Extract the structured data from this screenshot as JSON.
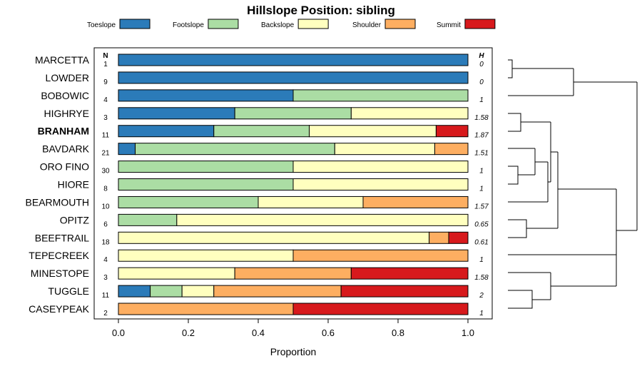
{
  "chart_data": {
    "type": "bar",
    "stacked": true,
    "orientation": "horizontal",
    "title": "Hillslope Position: sibling",
    "xlabel": "Proportion",
    "xlim": [
      0,
      1
    ],
    "xticks": [
      "0.0",
      "0.2",
      "0.4",
      "0.6",
      "0.8",
      "1.0"
    ],
    "n_header": "N",
    "h_header": "H",
    "legend": {
      "placement": "top",
      "entries": [
        {
          "name": "Toeslope",
          "color": "#2b7bb9"
        },
        {
          "name": "Footslope",
          "color": "#abdda4"
        },
        {
          "name": "Backslope",
          "color": "#ffffbf"
        },
        {
          "name": "Shoulder",
          "color": "#fdae61"
        },
        {
          "name": "Summit",
          "color": "#d7191c"
        }
      ]
    },
    "categories": [
      "MARCETTA",
      "LOWDER",
      "BOBOWIC",
      "HIGHRYE",
      "BRANHAM",
      "BAVDARK",
      "ORO FINO",
      "HIORE",
      "BEARMOUTH",
      "OPITZ",
      "BEEFTRAIL",
      "TEPECREEK",
      "MINESTOPE",
      "TUGGLE",
      "CASEYPEAK"
    ],
    "highlight": "BRANHAM",
    "n": [
      "1",
      "9",
      "4",
      "3",
      "11",
      "21",
      "30",
      "8",
      "10",
      "6",
      "18",
      "4",
      "3",
      "11",
      "2"
    ],
    "h": [
      "0",
      "0",
      "1",
      "1.58",
      "1.87",
      "1.51",
      "1",
      "1",
      "1.57",
      "0.65",
      "0.61",
      "1",
      "1.58",
      "2",
      "1"
    ],
    "series": [
      {
        "name": "Toeslope",
        "values": [
          1.0,
          1.0,
          0.5,
          0.333,
          0.273,
          0.048,
          0,
          0,
          0,
          0,
          0,
          0,
          0,
          0.091,
          0
        ]
      },
      {
        "name": "Footslope",
        "values": [
          0,
          0,
          0.5,
          0.333,
          0.273,
          0.571,
          0.5,
          0.5,
          0.4,
          0.167,
          0,
          0,
          0,
          0.091,
          0
        ]
      },
      {
        "name": "Backslope",
        "values": [
          0,
          0,
          0,
          0.334,
          0.363,
          0.286,
          0.5,
          0.5,
          0.3,
          0.833,
          0.889,
          0.5,
          0.333,
          0.091,
          0
        ]
      },
      {
        "name": "Shoulder",
        "values": [
          0,
          0,
          0,
          0,
          0,
          0.095,
          0,
          0,
          0.3,
          0,
          0.056,
          0.5,
          0.333,
          0.364,
          0.5
        ]
      },
      {
        "name": "Summit",
        "values": [
          0,
          0,
          0,
          0,
          0.091,
          0,
          0,
          0,
          0,
          0,
          0.055,
          0,
          0.334,
          0.363,
          0.5
        ]
      }
    ]
  }
}
